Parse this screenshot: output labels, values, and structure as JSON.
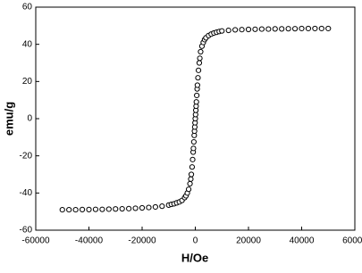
{
  "chart_data": {
    "type": "scatter",
    "x_label": "H/Oe",
    "y_label": "emu/g",
    "xlim": [
      -60000,
      60000
    ],
    "xticks": [
      -60000,
      -40000,
      -20000,
      0,
      20000,
      40000,
      60000
    ],
    "ylim": [
      -60,
      60
    ],
    "yticks": [
      -60,
      -40,
      -20,
      0,
      20,
      40,
      60
    ],
    "marker_color": "#000000",
    "x": [
      -50000,
      -47500,
      -45000,
      -42500,
      -40000,
      -37500,
      -35000,
      -32500,
      -30000,
      -27500,
      -25000,
      -22500,
      -20000,
      -17500,
      -15000,
      -12500,
      -10000,
      -9000,
      -8000,
      -7000,
      -6000,
      -5000,
      -4000,
      -3500,
      -3000,
      -2500,
      -2000,
      -1700,
      -1500,
      -1200,
      -1000,
      -800,
      -700,
      -550,
      -400,
      -300,
      -200,
      -100,
      0,
      100,
      200,
      300,
      400,
      550,
      700,
      800,
      1000,
      1200,
      1500,
      1700,
      2000,
      2500,
      3000,
      3500,
      4000,
      5000,
      6000,
      7000,
      8000,
      9000,
      10000,
      12500,
      15000,
      17500,
      20000,
      22500,
      25000,
      27500,
      30000,
      32500,
      35000,
      37500,
      40000,
      42500,
      45000,
      47500,
      50000
    ],
    "values": [
      -49,
      -49,
      -49,
      -48.9,
      -48.9,
      -48.8,
      -48.8,
      -48.7,
      -48.6,
      -48.5,
      -48.4,
      -48.2,
      -48,
      -47.8,
      -47.5,
      -47.1,
      -46.5,
      -46.1,
      -45.8,
      -45.3,
      -44.8,
      -44,
      -42.5,
      -41.5,
      -40,
      -38,
      -35,
      -32.5,
      -30,
      -26,
      -22,
      -18,
      -16,
      -12.5,
      -9,
      -6.7,
      -4.5,
      -2.2,
      0,
      2.2,
      4.5,
      6.7,
      9,
      12.5,
      16,
      18,
      22,
      26,
      30,
      32.5,
      36,
      39,
      41,
      42.5,
      43.5,
      44.7,
      45.5,
      46.1,
      46.5,
      46.9,
      47.2,
      47.5,
      47.8,
      47.9,
      48,
      48.1,
      48.2,
      48.2,
      48.3,
      48.3,
      48.4,
      48.4,
      48.5,
      48.5,
      48.5,
      48.5,
      48.5
    ]
  }
}
